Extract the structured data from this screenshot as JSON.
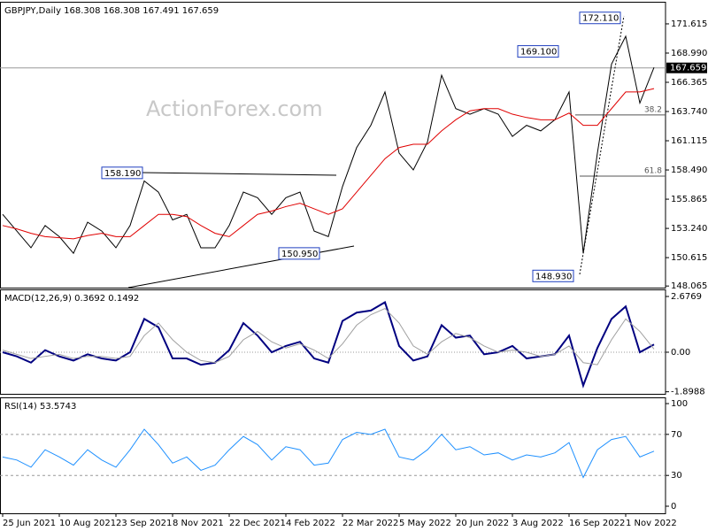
{
  "chart_data": [
    {
      "type": "line",
      "title": "GBPJPY,Daily 168.308 168.308 167.491 167.659",
      "watermark": "ActionForex.com",
      "categories": [
        "25 Jun 2021",
        null,
        null,
        null,
        "10 Aug 2021",
        null,
        null,
        null,
        "23 Sep 2021",
        null,
        null,
        null,
        "8 Nov 2021",
        null,
        null,
        null,
        "22 Dec 2021",
        null,
        null,
        null,
        "4 Feb 2022",
        null,
        null,
        null,
        "22 Mar 2022",
        null,
        null,
        null,
        "5 May 2022",
        null,
        null,
        null,
        "20 Jun 2022",
        null,
        null,
        null,
        "3 Aug 2022",
        null,
        null,
        null,
        "16 Sep 2022",
        null,
        null,
        null,
        "1 Nov 2022",
        null,
        null
      ],
      "series": [
        {
          "color": "#000000",
          "values": [
            154.5,
            153.0,
            151.5,
            153.5,
            152.5,
            151.0,
            153.8,
            153.0,
            151.5,
            153.5,
            157.5,
            156.5,
            154.0,
            154.5,
            151.5,
            151.5,
            153.5,
            156.5,
            156.0,
            154.5,
            156.0,
            156.5,
            153.0,
            152.5,
            157.0,
            160.5,
            162.5,
            165.5,
            160.0,
            158.5,
            161.0,
            167.0,
            164.0,
            163.5,
            164.0,
            163.5,
            161.5,
            162.5,
            162.0,
            163.0,
            165.5,
            151.0,
            160.0,
            168.0,
            170.5,
            164.5,
            167.7
          ]
        },
        {
          "color": "#e00000",
          "values": [
            153.5,
            153.2,
            152.8,
            152.5,
            152.4,
            152.3,
            152.6,
            152.8,
            152.5,
            152.5,
            153.5,
            154.5,
            154.5,
            154.3,
            153.5,
            152.8,
            152.5,
            153.5,
            154.5,
            154.8,
            155.2,
            155.5,
            155.0,
            154.5,
            155.0,
            156.5,
            158.0,
            159.5,
            160.5,
            160.8,
            160.8,
            162.0,
            163.0,
            163.8,
            164.0,
            164.0,
            163.5,
            163.2,
            163.0,
            163.0,
            163.6,
            162.5,
            162.5,
            164.0,
            165.5,
            165.5,
            165.8
          ]
        }
      ],
      "current_price": 167.659,
      "annotations": [
        {
          "value": 158.19,
          "label": "158.190"
        },
        {
          "value": 150.95,
          "label": "150.950"
        },
        {
          "value": 148.93,
          "label": "148.930"
        },
        {
          "value": 169.1,
          "label": "169.100"
        },
        {
          "value": 172.11,
          "label": "172.110"
        }
      ],
      "fib_levels": [
        {
          "level": 38.2,
          "price": 163.43
        },
        {
          "level": 61.8,
          "price": 157.94
        }
      ],
      "ylim": [
        147.92,
        173.52
      ],
      "yticks": [
        171.615,
        {
          "value": 168.99,
          "label": "168.990"
        },
        166.365,
        {
          "value": 163.74,
          "label": "163.740"
        },
        161.115,
        {
          "value": 158.49,
          "label": "158.490"
        },
        155.865,
        {
          "value": 153.24,
          "label": "153.240"
        },
        150.615,
        148.065
      ]
    },
    {
      "type": "line",
      "title": "MACD(12,26,9) 0.3692 0.1492",
      "series": [
        {
          "color": "#000080",
          "values": [
            0.0,
            -0.2,
            -0.5,
            0.1,
            -0.2,
            -0.4,
            -0.1,
            -0.3,
            -0.4,
            0.0,
            1.6,
            1.2,
            -0.3,
            -0.3,
            -0.6,
            -0.5,
            0.1,
            1.4,
            0.8,
            0.0,
            0.3,
            0.5,
            -0.3,
            -0.5,
            1.5,
            1.9,
            2.0,
            2.4,
            0.3,
            -0.4,
            -0.2,
            1.3,
            0.7,
            0.8,
            -0.1,
            0.0,
            0.3,
            -0.3,
            -0.2,
            -0.1,
            0.8,
            -1.6,
            0.2,
            1.6,
            2.2,
            0.0,
            0.37
          ]
        },
        {
          "color": "#a0a0a0",
          "values": [
            0.1,
            -0.1,
            -0.3,
            -0.2,
            -0.1,
            -0.3,
            -0.2,
            -0.2,
            -0.3,
            -0.2,
            0.8,
            1.4,
            0.6,
            0.0,
            -0.4,
            -0.5,
            -0.2,
            0.6,
            1.0,
            0.5,
            0.2,
            0.4,
            0.1,
            -0.3,
            0.4,
            1.3,
            1.8,
            2.1,
            1.4,
            0.3,
            -0.1,
            0.5,
            0.9,
            0.7,
            0.3,
            0.0,
            0.1,
            0.0,
            -0.2,
            -0.1,
            0.3,
            -0.5,
            -0.6,
            0.6,
            1.6,
            1.0,
            0.15
          ]
        }
      ],
      "ylim": [
        -1.998,
        2.974
      ],
      "yticks": [
        2.6769,
        {
          "value": 0,
          "label": "0.00"
        },
        -1.8988
      ]
    },
    {
      "type": "line",
      "title": "RSI(14) 53.5743",
      "series": [
        {
          "color": "#1e90ff",
          "values": [
            48,
            45,
            38,
            55,
            48,
            40,
            55,
            45,
            38,
            55,
            75,
            60,
            42,
            48,
            35,
            40,
            55,
            68,
            60,
            45,
            58,
            55,
            40,
            42,
            65,
            72,
            70,
            75,
            48,
            45,
            55,
            70,
            55,
            58,
            50,
            52,
            45,
            50,
            48,
            52,
            62,
            28,
            55,
            65,
            68,
            48,
            53.6
          ]
        }
      ],
      "levels": [
        70,
        30
      ],
      "ylim": [
        -6.9,
        105.2
      ],
      "yticks": [
        100,
        70,
        30,
        0
      ]
    }
  ]
}
